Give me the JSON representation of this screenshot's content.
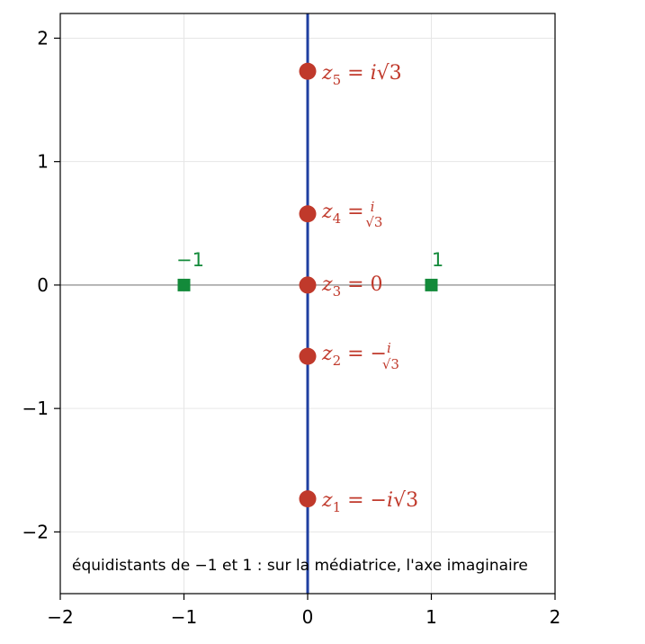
{
  "chart_data": {
    "type": "scatter",
    "xlim": [
      -2,
      2
    ],
    "ylim": [
      -2.5,
      2.2
    ],
    "x_ticks": [
      "−2",
      "−1",
      "0",
      "1",
      "2"
    ],
    "y_ticks": [
      "−2",
      "−1",
      "0",
      "1",
      "2"
    ],
    "x_tick_values": [
      -2,
      -1,
      0,
      1,
      2
    ],
    "y_tick_values": [
      -2,
      -1,
      0,
      1,
      2
    ],
    "grid": true,
    "vertical_line_x": 0,
    "horizontal_line_y": 0,
    "colors": {
      "roots": "#c0392b",
      "endpoints": "#138a3a",
      "axis_line": "#1f3fa0",
      "grid": "#e6e6e6",
      "horizontal": "#808080"
    },
    "roots": [
      {
        "name": "z₁",
        "x": 0,
        "y": -1.732,
        "label": "z₁ = −i√3"
      },
      {
        "name": "z₂",
        "x": 0,
        "y": -0.577,
        "label": "z₂ = −i/√3"
      },
      {
        "name": "z₃",
        "x": 0,
        "y": 0,
        "label": "z₃ = 0"
      },
      {
        "name": "z₄",
        "x": 0,
        "y": 0.577,
        "label": "z₄ = i/√3"
      },
      {
        "name": "z₅",
        "x": 0,
        "y": 1.732,
        "label": "z₅ = i√3"
      }
    ],
    "endpoints": [
      {
        "x": -1,
        "y": 0,
        "label": "−1"
      },
      {
        "x": 1,
        "y": 0,
        "label": "1"
      }
    ],
    "annotation": "équidistants de −1 et 1 : sur la médiatrice, l'axe imaginaire"
  }
}
